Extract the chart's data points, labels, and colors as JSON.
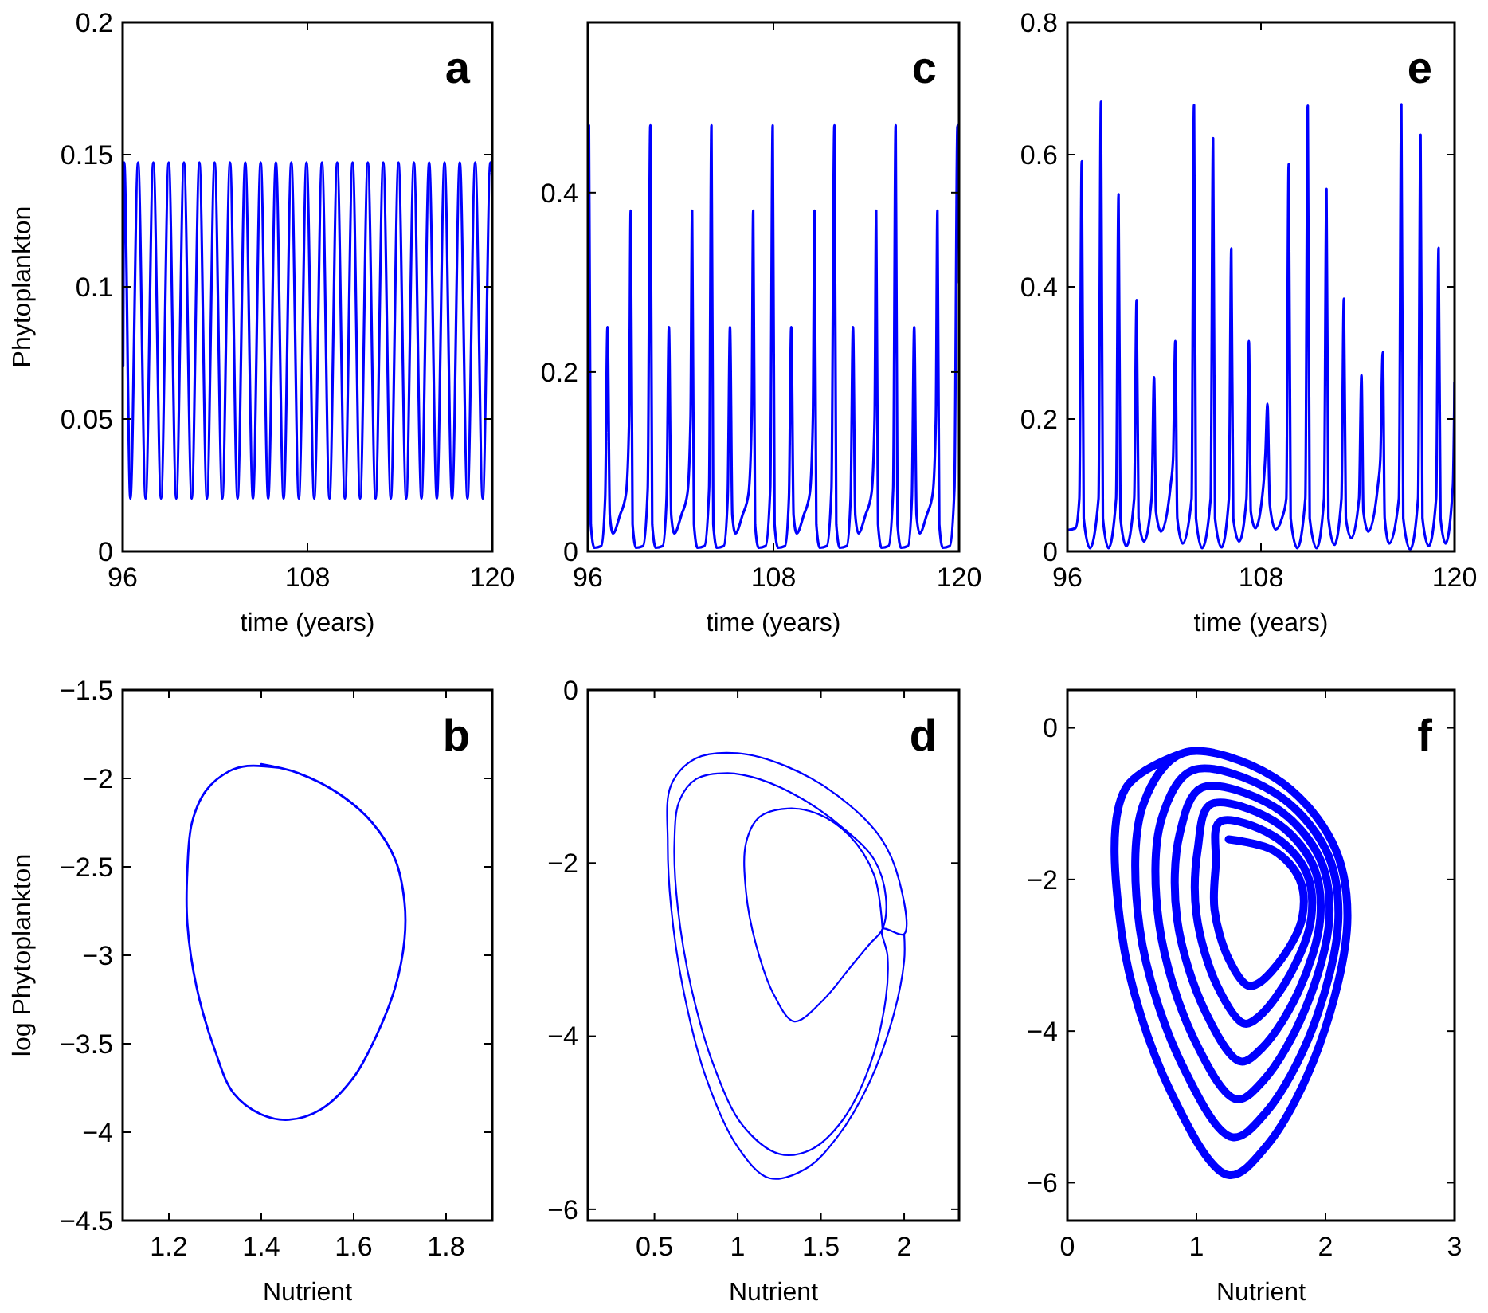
{
  "chart_data": [
    {
      "type": "line",
      "title": "a",
      "xlabel": "time (years)",
      "ylabel": "Phytoplankton",
      "xlim": [
        96,
        120
      ],
      "ylim": [
        0,
        0.2
      ],
      "xticks": [
        96,
        108,
        120
      ],
      "yticks": [
        0,
        0.05,
        0.1,
        0.15,
        0.2
      ],
      "series": [
        {
          "color": "#0000ff",
          "x": [
            96.03,
            96.1,
            96.5,
            97,
            97.49,
            97.99,
            98.49,
            98.99,
            99.48,
            99.98,
            100.48,
            100.98,
            101.47,
            101.97,
            102.47,
            102.97,
            103.46,
            103.96,
            104.46,
            104.96,
            105.45,
            105.95,
            106.45,
            106.95,
            107.44,
            107.94,
            108.44,
            108.94,
            109.43,
            109.93,
            110.43,
            110.93,
            111.42,
            111.92,
            112.42,
            112.92,
            113.41,
            113.91,
            114.41,
            114.91,
            115.4,
            115.9,
            116.4,
            116.9,
            117.39,
            117.89,
            118.39,
            118.89,
            119.38,
            119.88,
            120
          ],
          "values": [
            0.07,
            0.147,
            0.02,
            0.147,
            0.02,
            0.147,
            0.02,
            0.147,
            0.02,
            0.147,
            0.02,
            0.147,
            0.02,
            0.147,
            0.02,
            0.147,
            0.02,
            0.147,
            0.02,
            0.147,
            0.02,
            0.147,
            0.02,
            0.147,
            0.02,
            0.147,
            0.02,
            0.147,
            0.02,
            0.147,
            0.02,
            0.147,
            0.02,
            0.147,
            0.02,
            0.147,
            0.02,
            0.147,
            0.02,
            0.147,
            0.02,
            0.147,
            0.02,
            0.147,
            0.02,
            0.147,
            0.02,
            0.147,
            0.02,
            0.147,
            0.14
          ]
        }
      ]
    },
    {
      "type": "line",
      "title": "c",
      "xlabel": "time (years)",
      "xlim": [
        96,
        120
      ],
      "ylim": [
        0,
        0.59
      ],
      "xticks": [
        96,
        108,
        120
      ],
      "yticks": [
        0,
        0.2,
        0.4
      ],
      "series": [
        {
          "color": "#0000ff",
          "x": [
            96,
            96.07,
            96.19,
            96.42,
            96.87,
            97.12,
            97.27,
            97.42,
            97.62,
            98.07,
            98.47,
            98.67,
            98.77,
            98.89,
            99.12,
            99.57,
            99.87,
            100.04,
            100.16,
            100.39,
            100.84,
            101.09,
            101.24,
            101.39,
            101.59,
            102.04,
            102.44,
            102.64,
            102.74,
            102.86,
            103.09,
            103.54,
            103.84,
            103.99,
            104.11,
            104.34,
            104.79,
            105.04,
            105.19,
            105.34,
            105.54,
            105.99,
            106.39,
            106.59,
            106.69,
            106.81,
            107.04,
            107.49,
            107.79,
            107.95,
            108.07,
            108.3,
            108.75,
            109,
            109.15,
            109.3,
            109.5,
            109.95,
            110.35,
            110.55,
            110.65,
            110.77,
            111,
            111.45,
            111.75,
            111.94,
            112.06,
            112.29,
            112.74,
            112.99,
            113.14,
            113.29,
            113.49,
            113.94,
            114.34,
            114.54,
            114.64,
            114.76,
            114.99,
            115.44,
            115.74,
            115.9,
            116.02,
            116.25,
            116.7,
            116.95,
            117.1,
            117.25,
            117.45,
            117.9,
            118.3,
            118.5,
            118.6,
            118.72,
            118.95,
            119.4,
            119.7,
            119.9,
            120
          ],
          "values": [
            0.3,
            0.475,
            0.03,
            0.004,
            0.006,
            0.06,
            0.25,
            0.04,
            0.02,
            0.04,
            0.065,
            0.15,
            0.38,
            0.03,
            0.004,
            0.006,
            0.07,
            0.475,
            0.03,
            0.004,
            0.006,
            0.06,
            0.25,
            0.04,
            0.02,
            0.04,
            0.065,
            0.15,
            0.38,
            0.03,
            0.004,
            0.006,
            0.07,
            0.475,
            0.03,
            0.004,
            0.006,
            0.06,
            0.25,
            0.04,
            0.02,
            0.04,
            0.065,
            0.15,
            0.38,
            0.03,
            0.004,
            0.006,
            0.07,
            0.475,
            0.03,
            0.004,
            0.006,
            0.06,
            0.25,
            0.04,
            0.02,
            0.04,
            0.065,
            0.15,
            0.38,
            0.03,
            0.004,
            0.006,
            0.07,
            0.475,
            0.03,
            0.004,
            0.006,
            0.06,
            0.25,
            0.04,
            0.02,
            0.04,
            0.065,
            0.15,
            0.38,
            0.03,
            0.004,
            0.006,
            0.07,
            0.475,
            0.03,
            0.004,
            0.006,
            0.06,
            0.25,
            0.04,
            0.02,
            0.04,
            0.065,
            0.15,
            0.38,
            0.03,
            0.004,
            0.006,
            0.07,
            0.475,
            0.3
          ]
        }
      ]
    },
    {
      "type": "line",
      "title": "e",
      "xlabel": "time (years)",
      "xlim": [
        96,
        120
      ],
      "ylim": [
        0,
        0.8
      ],
      "xticks": [
        96,
        108,
        120
      ],
      "yticks": [
        0,
        0.2,
        0.4,
        0.6,
        0.8
      ],
      "series": [
        {
          "color": "#0000ff",
          "x": [
            96,
            96.5,
            96.74,
            96.89,
            97.01,
            97.4,
            97.93,
            98.08,
            98.2,
            98.55,
            99.02,
            99.17,
            99.29,
            99.65,
            100.14,
            100.29,
            100.41,
            100.75,
            101.22,
            101.37,
            101.49,
            101.8,
            102.4,
            102.55,
            102.69,
            102.81,
            103.15,
            103.7,
            103.85,
            103.97,
            104.35,
            104.88,
            105.03,
            105.15,
            105.55,
            106.01,
            106.16,
            106.28,
            106.65,
            107.1,
            107.25,
            107.37,
            107.65,
            108.15,
            108.28,
            108.4,
            108.55,
            108.9,
            109.3,
            109.57,
            109.72,
            109.84,
            110.25,
            110.75,
            110.9,
            111.02,
            111.45,
            111.91,
            112.06,
            112.18,
            112.55,
            112.99,
            113.14,
            113.26,
            113.6,
            114.08,
            114.23,
            114.35,
            114.65,
            115.25,
            115.4,
            115.55,
            115.67,
            115.95,
            116.55,
            116.7,
            116.82,
            117.25,
            117.74,
            117.89,
            118.01,
            118.4,
            118.86,
            119.01,
            119.13,
            119.45,
            119.9,
            120
          ],
          "values": [
            0.032,
            0.035,
            0.08,
            0.59,
            0.05,
            0.005,
            0.08,
            0.68,
            0.05,
            0.005,
            0.08,
            0.54,
            0.05,
            0.008,
            0.08,
            0.38,
            0.05,
            0.015,
            0.08,
            0.263,
            0.06,
            0.03,
            0.1,
            0.14,
            0.318,
            0.05,
            0.012,
            0.08,
            0.675,
            0.05,
            0.005,
            0.08,
            0.625,
            0.05,
            0.006,
            0.08,
            0.458,
            0.05,
            0.015,
            0.08,
            0.318,
            0.06,
            0.035,
            0.1,
            0.15,
            0.223,
            0.07,
            0.033,
            0.05,
            0.08,
            0.586,
            0.05,
            0.005,
            0.08,
            0.674,
            0.05,
            0.005,
            0.08,
            0.548,
            0.05,
            0.01,
            0.08,
            0.382,
            0.05,
            0.02,
            0.08,
            0.266,
            0.06,
            0.03,
            0.1,
            0.14,
            0.301,
            0.05,
            0.012,
            0.08,
            0.676,
            0.05,
            0.003,
            0.08,
            0.63,
            0.05,
            0.008,
            0.08,
            0.459,
            0.05,
            0.012,
            0.1,
            0.255
          ]
        }
      ]
    },
    {
      "type": "line",
      "title": "b",
      "xlabel": "Nutrient",
      "ylabel": "log Phytoplankton",
      "xlim": [
        1.1,
        1.9
      ],
      "ylim": [
        -4.5,
        -1.5
      ],
      "xticks": [
        1.2,
        1.4,
        1.6,
        1.8
      ],
      "yticks": [
        {
          "value": -4.5,
          "label": "−4.5"
        },
        {
          "value": -4,
          "label": "−4"
        },
        {
          "value": -3.5,
          "label": "−3.5"
        },
        {
          "value": -3,
          "label": "−3"
        },
        {
          "value": -2.5,
          "label": "−2.5"
        },
        {
          "value": -2,
          "label": "−2"
        },
        {
          "value": -1.5,
          "label": "−1.5"
        }
      ],
      "series": [
        {
          "color": "#0000ff",
          "x": [
            1.4,
            1.48,
            1.57,
            1.64,
            1.69,
            1.71,
            1.71,
            1.69,
            1.65,
            1.6,
            1.53,
            1.46,
            1.4,
            1.34,
            1.3,
            1.26,
            1.24,
            1.24,
            1.25,
            1.28,
            1.33,
            1.37,
            1.44
          ],
          "values": [
            -1.92,
            -1.97,
            -2.09,
            -2.25,
            -2.46,
            -2.7,
            -2.91,
            -3.18,
            -3.45,
            -3.69,
            -3.87,
            -3.93,
            -3.9,
            -3.78,
            -3.54,
            -3.18,
            -2.82,
            -2.52,
            -2.25,
            -2.07,
            -1.96,
            -1.93,
            -1.94
          ]
        }
      ]
    },
    {
      "type": "line",
      "title": "d",
      "xlabel": "Nutrient",
      "xlim": [
        0.1,
        2.33
      ],
      "ylim": [
        -6.13,
        0
      ],
      "xticks": [
        0.5,
        1,
        1.5,
        2
      ],
      "yticks": [
        {
          "value": -6,
          "label": "−6"
        },
        {
          "value": -4,
          "label": "−4"
        },
        {
          "value": -2,
          "label": "−2"
        },
        0
      ],
      "series": [
        {
          "color": "#0000ff",
          "x": [
            1.87,
            1.82,
            1.67,
            1.48,
            1.3,
            1.13,
            1.05,
            1.05,
            1.11,
            1.22,
            1.34,
            1.51,
            1.67,
            1.79,
            1.87,
            1.89,
            1.82,
            1.63,
            1.38,
            1.13,
            0.94,
            0.75,
            0.65,
            0.62,
            0.64,
            0.72,
            0.86,
            1.03,
            1.25,
            1.44,
            1.63,
            1.79,
            1.89,
            1.9,
            1.87,
            2,
            1.97,
            1.86,
            1.6,
            1.29,
            1,
            0.75,
            0.6,
            0.58,
            0.6,
            0.67,
            0.81,
            1,
            1.19,
            1.41,
            1.6,
            1.79,
            1.93,
            2,
            2
          ],
          "values": [
            -2.76,
            -2.14,
            -1.68,
            -1.43,
            -1.37,
            -1.47,
            -1.77,
            -2.33,
            -2.94,
            -3.53,
            -3.83,
            -3.59,
            -3.22,
            -2.94,
            -2.76,
            -2.39,
            -1.96,
            -1.59,
            -1.25,
            -1.03,
            -0.96,
            -1.03,
            -1.28,
            -1.77,
            -2.51,
            -3.43,
            -4.36,
            -5.03,
            -5.36,
            -5.31,
            -4.97,
            -4.36,
            -3.56,
            -3.07,
            -2.76,
            -2.82,
            -2.2,
            -1.71,
            -1.22,
            -0.88,
            -0.73,
            -0.79,
            -1.1,
            -1.77,
            -2.51,
            -3.43,
            -4.48,
            -5.28,
            -5.64,
            -5.53,
            -5.16,
            -4.54,
            -3.8,
            -3.13,
            -2.82
          ]
        }
      ]
    },
    {
      "type": "line",
      "title": "f",
      "xlabel": "Nutrient",
      "xlim": [
        0,
        3
      ],
      "ylim": [
        -6.5,
        0.5
      ],
      "xticks": [
        0,
        1,
        2,
        3
      ],
      "yticks": [
        {
          "value": -6,
          "label": "−6"
        },
        {
          "value": -4,
          "label": "−4"
        },
        {
          "value": -2,
          "label": "−2"
        },
        0
      ],
      "series": [
        {
          "color": "#0000ff",
          "x": [
            1.25,
            1.6,
            1.8,
            1.82,
            1.68,
            1.48,
            1.4,
            1.25,
            1.14,
            1.15,
            1.18,
            1.6,
            1.85,
            1.89,
            1.73,
            1.49,
            1.37,
            1.16,
            1,
            1.01,
            1.11,
            1.6,
            1.9,
            1.96,
            1.79,
            1.51,
            1.34,
            1.07,
            0.85,
            0.87,
            1.04,
            1.6,
            1.95,
            2.03,
            1.84,
            1.52,
            1.31,
            0.98,
            0.71,
            0.73,
            0.97,
            1.6,
            2,
            2.1,
            1.9,
            1.54,
            1.28,
            0.89,
            0.56,
            0.59,
            0.9,
            1.6,
            2.05,
            2.17,
            1.95,
            1.55,
            1.25,
            0.8,
            0.42,
            0.45,
            0.9
          ],
          "values": [
            -1.47,
            -1.62,
            -2,
            -2.5,
            -3,
            -3.37,
            -3.4,
            -3.05,
            -2.4,
            -1.8,
            -1.24,
            -1.43,
            -1.9,
            -2.5,
            -3.24,
            -3.8,
            -3.9,
            -3.4,
            -2.46,
            -1.6,
            -1.01,
            -1.23,
            -1.8,
            -2.5,
            -3.48,
            -4.22,
            -4.4,
            -3.75,
            -2.52,
            -1.4,
            -0.79,
            -1.04,
            -1.7,
            -2.5,
            -3.72,
            -4.65,
            -4.9,
            -4.1,
            -2.58,
            -1.2,
            -0.56,
            -0.85,
            -1.6,
            -2.5,
            -3.96,
            -5.07,
            -5.4,
            -4.45,
            -2.64,
            -1,
            -0.33,
            -0.65,
            -1.5,
            -2.5,
            -4.2,
            -5.5,
            -5.9,
            -4.8,
            -2.7,
            -0.8,
            -0.33
          ]
        }
      ]
    }
  ]
}
